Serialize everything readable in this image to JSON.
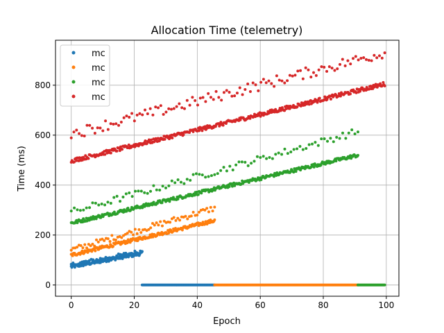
{
  "chart_data": {
    "type": "scatter",
    "title": "Allocation Time (telemetry)",
    "xlabel": "Epoch",
    "ylabel": "Time (ms)",
    "xlim": [
      -5,
      104
    ],
    "ylim": [
      -45,
      980
    ],
    "xticks": [
      0,
      20,
      40,
      60,
      80,
      100
    ],
    "yticks": [
      0,
      200,
      400,
      600,
      800
    ],
    "grid": true,
    "legend": "top-left",
    "series": [
      {
        "name": "mc",
        "color": "#1f77b4",
        "bands": [
          {
            "x": [
              0,
              22.5
            ],
            "y": [
              73,
              127
            ],
            "n": 120,
            "spread": 7
          },
          {
            "x": [
              0,
              22.5
            ],
            "y": [
              82,
              136
            ],
            "n": 40,
            "spread": 7
          },
          {
            "x": [
              22.5,
              45.5
            ],
            "y": [
              0,
              0
            ],
            "n": 95,
            "spread": 0
          }
        ]
      },
      {
        "name": "mc",
        "color": "#ff7f0e",
        "bands": [
          {
            "x": [
              0,
              45.5
            ],
            "y": [
              120,
              258
            ],
            "n": 210,
            "spread": 7
          },
          {
            "x": [
              0,
              45.5
            ],
            "y": [
              140,
              308
            ],
            "n": 75,
            "spread": 12
          },
          {
            "x": [
              45.5,
              91
            ],
            "y": [
              0,
              0
            ],
            "n": 185,
            "spread": 0
          }
        ]
      },
      {
        "name": "mc",
        "color": "#2ca02c",
        "bands": [
          {
            "x": [
              0,
              91
            ],
            "y": [
              248,
              520
            ],
            "n": 380,
            "spread": 7
          },
          {
            "x": [
              0,
              91
            ],
            "y": [
              292,
              615
            ],
            "n": 95,
            "spread": 14
          },
          {
            "x": [
              91,
              99.5
            ],
            "y": [
              0,
              0
            ],
            "n": 38,
            "spread": 0
          }
        ]
      },
      {
        "name": "mc",
        "color": "#d62728",
        "bands": [
          {
            "x": [
              0,
              99.5
            ],
            "y": [
              497,
              805
            ],
            "n": 420,
            "spread": 8
          },
          {
            "x": [
              0,
              99.5
            ],
            "y": [
              605,
              930
            ],
            "n": 120,
            "spread": 22
          }
        ]
      }
    ]
  }
}
